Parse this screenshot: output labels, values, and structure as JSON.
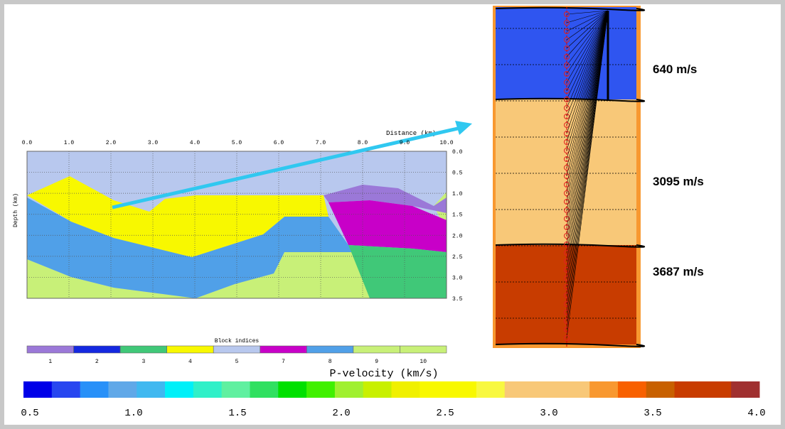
{
  "section": {
    "x_title": "Distance (km)",
    "y_title": "Depth (km)",
    "xticks": [
      "0.0",
      "1.0",
      "2.0",
      "3.0",
      "4.0",
      "5.0",
      "6.0",
      "7.0",
      "8.0",
      "9.0",
      "10.0"
    ],
    "yticks": [
      "0.0",
      "0.5",
      "1.0",
      "1.5",
      "2.0",
      "2.5",
      "3.0",
      "3.5"
    ]
  },
  "blocks": {
    "title": "Block indices",
    "items": [
      {
        "label": "1",
        "color": "#9b78d8"
      },
      {
        "label": "2",
        "color": "#1428e0"
      },
      {
        "label": "3",
        "color": "#40c878"
      },
      {
        "label": "4",
        "color": "#f8f800"
      },
      {
        "label": "5",
        "color": "#b8c8ee"
      },
      {
        "label": "7",
        "color": "#c800c8"
      },
      {
        "label": "8",
        "color": "#50a0e8"
      },
      {
        "label": "9",
        "color": "#c8f078"
      },
      {
        "label": "10",
        "color": "#c8f078"
      }
    ]
  },
  "colorbar": {
    "title": "P-velocity (km/s)",
    "colors": [
      "#0000e8",
      "#2846f0",
      "#2890f8",
      "#60a8e8",
      "#40b8f0",
      "#00f0f8",
      "#30f0c8",
      "#60f0a0",
      "#30e060",
      "#00e000",
      "#40f000",
      "#a0f030",
      "#c8f000",
      "#f0f000",
      "#f8f800",
      "#f8f800",
      "#f8f840",
      "#f8c878",
      "#f8c878",
      "#f8c878",
      "#f89830",
      "#f86000",
      "#c86000",
      "#c83c00",
      "#c83c00",
      "#a03030"
    ],
    "ticks": [
      "0.5",
      "1.0",
      "1.5",
      "2.0",
      "2.5",
      "3.0",
      "3.5",
      "4.0"
    ]
  },
  "well": {
    "layers": [
      {
        "label": "640 m/s",
        "color": "#2f55f0"
      },
      {
        "label": "3095 m/s",
        "color": "#f8c878"
      },
      {
        "label": "3687 m/s",
        "color": "#c83c00"
      }
    ]
  }
}
